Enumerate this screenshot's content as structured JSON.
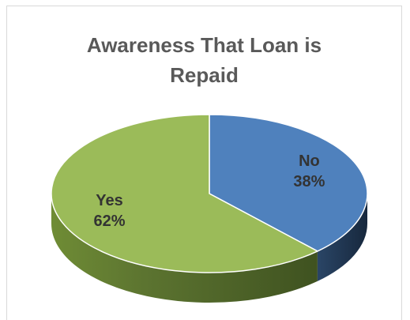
{
  "chart_data": {
    "type": "pie",
    "title_lines": [
      "Awareness That Loan is",
      "Repaid"
    ],
    "slices": [
      {
        "label": "No",
        "value": 38,
        "value_label": "38%",
        "color": "#4f81bd",
        "side_color": "#1f3550",
        "label_color": "#333333"
      },
      {
        "label": "Yes",
        "value": 62,
        "value_label": "62%",
        "color": "#9bbb59",
        "side_color": "#4f6128",
        "label_color": "#333333"
      }
    ],
    "style": "3d"
  }
}
